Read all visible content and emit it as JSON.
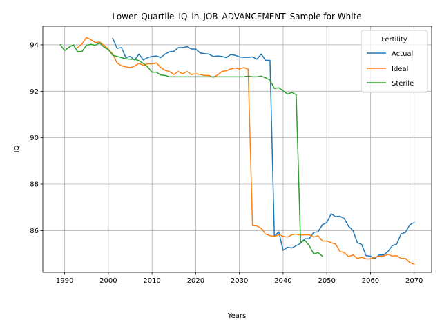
{
  "chart_data": {
    "type": "line",
    "title": "Lower_Quartile_IQ_in_JOB_ADVANCEMENT_Sample for White",
    "xlabel": "Years",
    "ylabel": "IQ",
    "xlim": [
      1985,
      2074
    ],
    "ylim": [
      84.2,
      94.8
    ],
    "xticks": [
      1990,
      2000,
      2010,
      2020,
      2030,
      2040,
      2050,
      2060,
      2070
    ],
    "yticks": [
      86,
      88,
      90,
      92,
      94
    ],
    "grid": true,
    "legend": {
      "title": "Fertility",
      "placement": "top-right"
    },
    "series": [
      {
        "name": "Actual",
        "color": "#1f77b4",
        "x": [
          2001,
          2002,
          2003,
          2004,
          2005,
          2006,
          2007,
          2008,
          2009,
          2010,
          2011,
          2012,
          2013,
          2014,
          2015,
          2016,
          2017,
          2018,
          2019,
          2020,
          2021,
          2022,
          2023,
          2024,
          2025,
          2026,
          2027,
          2028,
          2029,
          2030,
          2031,
          2032,
          2033,
          2034,
          2035,
          2036,
          2037,
          2038,
          2039,
          2040,
          2041,
          2042,
          2043,
          2044,
          2045,
          2046,
          2047,
          2048,
          2049,
          2050,
          2051,
          2052,
          2053,
          2054,
          2055,
          2056,
          2057,
          2058,
          2059,
          2060,
          2061,
          2062,
          2063,
          2064,
          2065,
          2066,
          2067,
          2068,
          2069,
          2070
        ],
        "y": [
          94.28,
          93.85,
          93.88,
          93.45,
          93.5,
          93.35,
          93.6,
          93.35,
          93.45,
          93.5,
          93.52,
          93.45,
          93.6,
          93.7,
          93.72,
          93.88,
          93.88,
          93.92,
          93.82,
          93.82,
          93.65,
          93.62,
          93.6,
          93.5,
          93.52,
          93.5,
          93.45,
          93.58,
          93.55,
          93.48,
          93.46,
          93.46,
          93.48,
          93.38,
          93.6,
          93.33,
          93.33,
          85.75,
          85.95,
          85.15,
          85.28,
          85.25,
          85.35,
          85.45,
          85.65,
          85.65,
          85.92,
          85.95,
          86.25,
          86.35,
          86.72,
          86.6,
          86.62,
          86.52,
          86.18,
          86.0,
          85.48,
          85.4,
          84.92,
          84.9,
          84.8,
          84.95,
          84.95,
          85.1,
          85.35,
          85.42,
          85.85,
          85.92,
          86.25,
          86.35
        ]
      },
      {
        "name": "Ideal",
        "color": "#ff7f0e",
        "x": [
          1993,
          1994,
          1995,
          1996,
          1997,
          1998,
          1999,
          2000,
          2001,
          2002,
          2003,
          2004,
          2005,
          2006,
          2007,
          2008,
          2009,
          2010,
          2011,
          2012,
          2013,
          2014,
          2015,
          2016,
          2017,
          2018,
          2019,
          2020,
          2021,
          2022,
          2023,
          2024,
          2025,
          2026,
          2027,
          2028,
          2029,
          2030,
          2031,
          2032,
          2033,
          2034,
          2035,
          2036,
          2037,
          2038,
          2039,
          2040,
          2041,
          2042,
          2043,
          2044,
          2045,
          2046,
          2047,
          2048,
          2049,
          2050,
          2051,
          2052,
          2053,
          2054,
          2055,
          2056,
          2057,
          2058,
          2059,
          2060,
          2061,
          2062,
          2063,
          2064,
          2065,
          2066,
          2067,
          2068,
          2069,
          2070
        ],
        "y": [
          93.88,
          94.05,
          94.32,
          94.22,
          94.1,
          94.12,
          93.98,
          93.82,
          93.6,
          93.22,
          93.1,
          93.05,
          93.02,
          93.08,
          93.2,
          93.12,
          93.18,
          93.18,
          93.22,
          93.02,
          92.9,
          92.85,
          92.72,
          92.85,
          92.75,
          92.85,
          92.72,
          92.75,
          92.72,
          92.68,
          92.68,
          92.6,
          92.7,
          92.85,
          92.88,
          92.96,
          93.0,
          92.96,
          93.02,
          92.95,
          86.22,
          86.2,
          86.1,
          85.85,
          85.78,
          85.75,
          85.82,
          85.75,
          85.72,
          85.82,
          85.85,
          85.8,
          85.82,
          85.82,
          85.72,
          85.78,
          85.55,
          85.55,
          85.48,
          85.42,
          85.1,
          85.05,
          84.88,
          84.95,
          84.8,
          84.85,
          84.78,
          84.78,
          84.85,
          84.9,
          84.9,
          84.98,
          84.9,
          84.92,
          84.8,
          84.8,
          84.62,
          84.55
        ]
      },
      {
        "name": "Sterile",
        "color": "#2ca02c",
        "x": [
          1989,
          1990,
          1991,
          1992,
          1993,
          1994,
          1995,
          1996,
          1997,
          1998,
          1999,
          2000,
          2001,
          2002,
          2003,
          2004,
          2005,
          2006,
          2007,
          2008,
          2009,
          2010,
          2011,
          2012,
          2013,
          2014,
          2015,
          2016,
          2017,
          2018,
          2019,
          2020,
          2021,
          2022,
          2023,
          2024,
          2025,
          2026,
          2027,
          2028,
          2029,
          2030,
          2031,
          2032,
          2033,
          2034,
          2035,
          2036,
          2037,
          2038,
          2039,
          2040,
          2041,
          2042,
          2043,
          2044,
          2045,
          2046,
          2047,
          2048,
          2049
        ],
        "y": [
          94.0,
          93.75,
          93.9,
          94.0,
          93.7,
          93.72,
          93.98,
          94.02,
          93.98,
          94.08,
          93.9,
          93.8,
          93.55,
          93.5,
          93.45,
          93.4,
          93.38,
          93.38,
          93.32,
          93.2,
          93.05,
          92.82,
          92.82,
          92.7,
          92.68,
          92.62,
          92.62,
          92.62,
          92.62,
          92.62,
          92.62,
          92.62,
          92.62,
          92.62,
          92.62,
          92.62,
          92.62,
          92.62,
          92.62,
          92.62,
          92.62,
          92.62,
          92.62,
          92.65,
          92.62,
          92.62,
          92.65,
          92.58,
          92.48,
          92.12,
          92.15,
          92.02,
          91.88,
          91.95,
          91.85,
          85.5,
          85.58,
          85.35,
          85.0,
          85.05,
          84.9
        ]
      }
    ]
  }
}
